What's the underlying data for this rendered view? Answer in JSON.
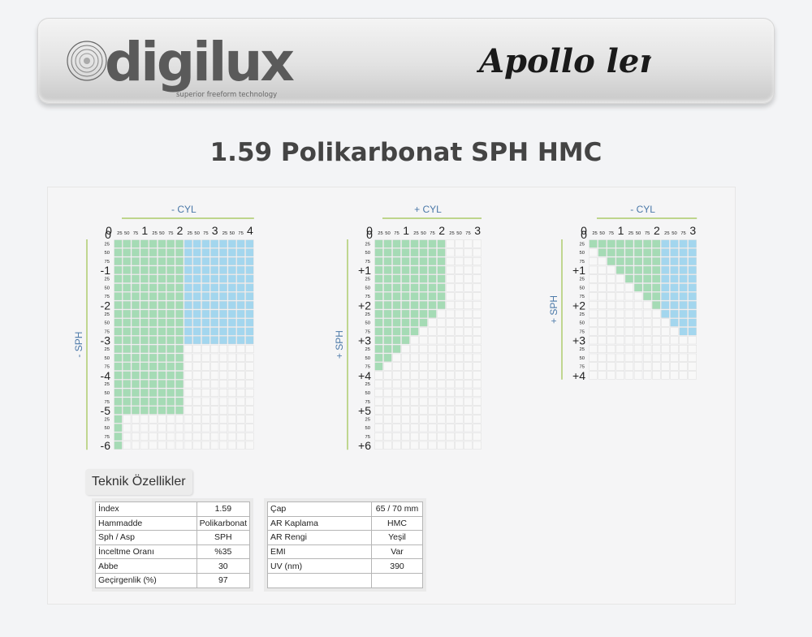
{
  "page": {
    "title": "1.59 Polikarbonat SPH HMC"
  },
  "brands": {
    "left_logo": "digilux",
    "left_tagline": "superior freeform technology",
    "right_logo": "Apollo lens"
  },
  "colors": {
    "green": "#a5dbb5",
    "blue": "#a3d6ee",
    "empty": "#f8f8f8",
    "grid_line": "#d8d8d8",
    "axis_line": "#9dc24c",
    "axis_label": "#4a78a8",
    "text": "#222222"
  },
  "chart_data": [
    {
      "type": "heatmap",
      "cyl_label": "- CYL",
      "sph_label": "- SPH",
      "cyl_major": [
        "0",
        "1",
        "2",
        "3",
        "4"
      ],
      "cyl_minor": [
        "25",
        "50",
        "75"
      ],
      "sph_major": [
        "0",
        "-1",
        "-2",
        "-3",
        "-4",
        "-5",
        "-6"
      ],
      "sph_minor": [
        "25",
        "50",
        "75"
      ],
      "cyl_range": [
        0,
        4
      ],
      "sph_range": [
        0,
        -6
      ],
      "step": 0.25,
      "cells": [
        {
          "sph_from": 0.25,
          "sph_to": 3.0,
          "cyl_from": 0.25,
          "cyl_to": 2.0,
          "color": "green"
        },
        {
          "sph_from": 0.25,
          "sph_to": 3.0,
          "cyl_from": 2.25,
          "cyl_to": 4.0,
          "color": "blue"
        },
        {
          "sph_from": 3.25,
          "sph_to": 5.0,
          "cyl_from": 0.25,
          "cyl_to": 2.0,
          "color": "green"
        },
        {
          "sph_from": 5.25,
          "sph_to": 6.0,
          "cyl_from": 0.25,
          "cyl_to": 0.25,
          "color": "green"
        }
      ]
    },
    {
      "type": "heatmap",
      "cyl_label": "+ CYL",
      "sph_label": "+ SPH",
      "cyl_major": [
        "0",
        "1",
        "2",
        "3"
      ],
      "cyl_minor": [
        "25",
        "50",
        "75"
      ],
      "sph_major": [
        "0",
        "+1",
        "+2",
        "+3",
        "+4",
        "+5",
        "+6"
      ],
      "sph_minor": [
        "25",
        "50",
        "75"
      ],
      "cyl_range": [
        0,
        3
      ],
      "sph_range": [
        0,
        6
      ],
      "step": 0.25,
      "row_starts_at_first_minor": true,
      "rule": "green where cyl <= min(2, 4 - sph)"
    },
    {
      "type": "heatmap",
      "cyl_label": "- CYL",
      "sph_label": "+ SPH",
      "cyl_major": [
        "0",
        "1",
        "2",
        "3"
      ],
      "cyl_minor": [
        "25",
        "50",
        "75"
      ],
      "sph_major": [
        "0",
        "+1",
        "+2",
        "+3",
        "+4"
      ],
      "sph_minor": [
        "25",
        "50",
        "75"
      ],
      "cyl_range": [
        0,
        3
      ],
      "sph_range": [
        0,
        4
      ],
      "step": 0.25,
      "row_starts_at_first_minor": true,
      "rule": "colored where cyl >= sph; green for cyl <= 2, blue for cyl > 2; colored rows sph 0.25 to 2.75"
    }
  ],
  "tech": {
    "label": "Teknik Özellikler",
    "left": [
      {
        "k": "İndex",
        "v": "1.59"
      },
      {
        "k": "Hammadde",
        "v": "Polikarbonat"
      },
      {
        "k": "Sph / Asp",
        "v": "SPH"
      },
      {
        "k": "İnceltme Oranı",
        "v": "%35"
      },
      {
        "k": "Abbe",
        "v": "30"
      },
      {
        "k": "Geçirgenlik (%)",
        "v": "97"
      }
    ],
    "right": [
      {
        "k": "Çap",
        "v": "65 / 70 mm"
      },
      {
        "k": "AR Kaplama",
        "v": "HMC"
      },
      {
        "k": "AR Rengi",
        "v": "Yeşil"
      },
      {
        "k": "EMI",
        "v": "Var"
      },
      {
        "k": "UV (nm)",
        "v": "390"
      },
      {
        "k": "",
        "v": ""
      }
    ]
  }
}
